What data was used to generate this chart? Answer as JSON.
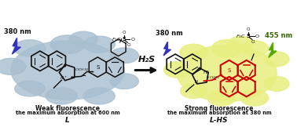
{
  "bg_color": "#ffffff",
  "left_blob_color": "#a8bfd0",
  "right_blob_color": "#e8ef80",
  "left_label_top": "Weak fluorescence",
  "left_label_mid": "the maximum absorption at 600 nm",
  "left_label_bot": "L",
  "right_label_top": "Strong fluorescence",
  "right_label_mid": "the maximum absorption at 380 nm",
  "right_label_bot": "L-HS",
  "arrow_label": "H₂S",
  "left_nm": "380 nm",
  "right_nm1": "380 nm",
  "right_nm2": "455 nm",
  "lightning_left_color": "#3333bb",
  "lightning_right_color": "#3333bb",
  "lightning_right2_color": "#55aa00",
  "mol_dark_color": "#111111",
  "mol_red_color": "#cc0000",
  "arrow_color": "#111111",
  "text_color": "#111111",
  "figwidth": 3.78,
  "figheight": 1.62,
  "dpi": 100
}
